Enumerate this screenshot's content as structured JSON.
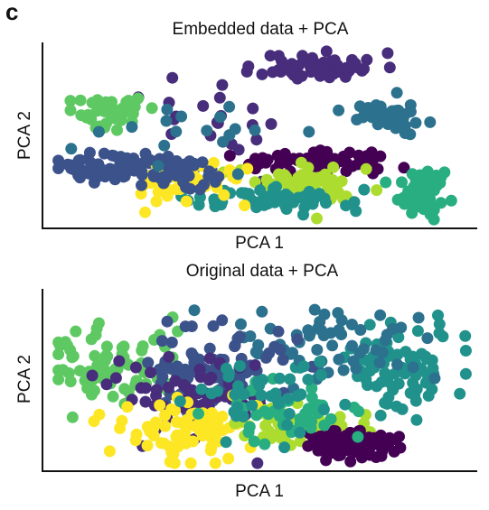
{
  "figure": {
    "panel_letter": "c"
  },
  "palette": {
    "p1": "#440154",
    "p2": "#472d7b",
    "p3": "#3b528b",
    "p4": "#2c728e",
    "p5": "#21918c",
    "p6": "#28ae80",
    "p7": "#5ec962",
    "p8": "#addc30",
    "p9": "#fde725"
  },
  "chart_data": [
    {
      "type": "scatter",
      "title": "Embedded data + PCA",
      "xlabel": "PCA 1",
      "ylabel": "PCA 2",
      "xlim": [
        0,
        100
      ],
      "ylim": [
        0,
        100
      ],
      "ticks": "none",
      "grid": false,
      "legend": "none",
      "clusters": [
        {
          "color": "p2",
          "center": [
            64,
            90
          ],
          "spread": [
            7,
            4
          ],
          "n": 70,
          "seed": 11
        },
        {
          "color": "p2",
          "center": [
            42,
            60
          ],
          "spread": [
            12,
            12
          ],
          "n": 20,
          "seed": 12
        },
        {
          "color": "p1",
          "center": [
            63,
            35
          ],
          "spread": [
            9,
            3
          ],
          "n": 75,
          "seed": 13
        },
        {
          "color": "p8",
          "center": [
            64,
            21
          ],
          "spread": [
            8,
            6
          ],
          "n": 60,
          "seed": 14
        },
        {
          "color": "p4",
          "center": [
            81,
            62
          ],
          "spread": [
            4,
            5
          ],
          "n": 45,
          "seed": 15
        },
        {
          "color": "p6",
          "center": [
            89,
            16
          ],
          "spread": [
            3,
            7
          ],
          "n": 55,
          "seed": 16
        },
        {
          "color": "p5",
          "center": [
            51,
            12
          ],
          "spread": [
            9,
            3
          ],
          "n": 65,
          "seed": 17
        },
        {
          "color": "p7",
          "center": [
            13,
            63
          ],
          "spread": [
            4,
            5
          ],
          "n": 45,
          "seed": 18
        },
        {
          "color": "p3",
          "center": [
            16,
            32
          ],
          "spread": [
            8,
            4
          ],
          "n": 70,
          "seed": 19
        },
        {
          "color": "p9",
          "center": [
            31,
            22
          ],
          "spread": [
            7,
            7
          ],
          "n": 45,
          "seed": 20
        },
        {
          "color": "p3",
          "center": [
            31,
            27
          ],
          "spread": [
            6,
            5
          ],
          "n": 35,
          "seed": 21
        },
        {
          "color": "p4",
          "center": [
            30,
            50
          ],
          "spread": [
            14,
            12
          ],
          "n": 18,
          "seed": 22
        }
      ]
    },
    {
      "type": "scatter",
      "title": "Original data + PCA",
      "xlabel": "PCA 1",
      "ylabel": "PCA 2",
      "xlim": [
        0,
        100
      ],
      "ylim": [
        0,
        100
      ],
      "ticks": "none",
      "grid": false,
      "legend": "none",
      "clusters": [
        {
          "color": "p7",
          "center": [
            14,
            58
          ],
          "spread": [
            9,
            12
          ],
          "n": 80,
          "seed": 31
        },
        {
          "color": "p5",
          "center": [
            83,
            58
          ],
          "spread": [
            9,
            13
          ],
          "n": 80,
          "seed": 32
        },
        {
          "color": "p4",
          "center": [
            66,
            70
          ],
          "spread": [
            11,
            11
          ],
          "n": 60,
          "seed": 33
        },
        {
          "color": "p3",
          "center": [
            38,
            58
          ],
          "spread": [
            10,
            14
          ],
          "n": 80,
          "seed": 34
        },
        {
          "color": "p2",
          "center": [
            34,
            42
          ],
          "spread": [
            12,
            14
          ],
          "n": 60,
          "seed": 35
        },
        {
          "color": "p9",
          "center": [
            32,
            22
          ],
          "spread": [
            9,
            10
          ],
          "n": 80,
          "seed": 36
        },
        {
          "color": "p8",
          "center": [
            60,
            22
          ],
          "spread": [
            7,
            6
          ],
          "n": 45,
          "seed": 37
        },
        {
          "color": "p1",
          "center": [
            71,
            13
          ],
          "spread": [
            6,
            4
          ],
          "n": 80,
          "seed": 38
        },
        {
          "color": "p6",
          "center": [
            56,
            32
          ],
          "spread": [
            9,
            9
          ],
          "n": 45,
          "seed": 39
        },
        {
          "color": "p5",
          "center": [
            50,
            40
          ],
          "spread": [
            8,
            10
          ],
          "n": 40,
          "seed": 40
        }
      ]
    }
  ]
}
